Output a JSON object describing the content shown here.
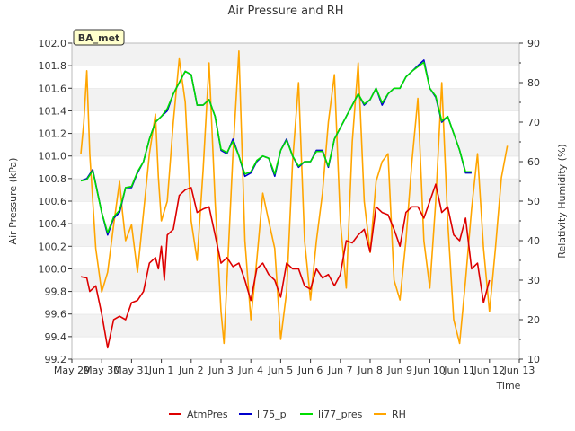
{
  "chart_data": {
    "type": "line",
    "title": "Air Pressure and RH",
    "badge": "BA_met",
    "xlabel": "Time",
    "ylabel": "Air Pressure (kPa)",
    "y2label": "Relativity Humidity (%)",
    "xlim": [
      0,
      15
    ],
    "ylim": [
      99.2,
      102.0
    ],
    "y2lim": [
      10,
      90
    ],
    "x_ticks": [
      {
        "x": 0,
        "label": "May 29"
      },
      {
        "x": 1,
        "label": "May 30"
      },
      {
        "x": 2,
        "label": "May 31"
      },
      {
        "x": 3,
        "label": "Jun 1"
      },
      {
        "x": 4,
        "label": "Jun 2"
      },
      {
        "x": 5,
        "label": "Jun 3"
      },
      {
        "x": 6,
        "label": "Jun 4"
      },
      {
        "x": 7,
        "label": "Jun 5"
      },
      {
        "x": 8,
        "label": "Jun 6"
      },
      {
        "x": 9,
        "label": "Jun 7"
      },
      {
        "x": 10,
        "label": "Jun 8"
      },
      {
        "x": 11,
        "label": "Jun 9"
      },
      {
        "x": 12,
        "label": "Jun 10"
      },
      {
        "x": 13,
        "label": "Jun 11"
      },
      {
        "x": 14,
        "label": "Jun 12"
      },
      {
        "x": 15,
        "label": "Jun 13"
      }
    ],
    "y_ticks": [
      "99.2",
      "99.4",
      "99.6",
      "99.8",
      "100.0",
      "100.2",
      "100.4",
      "100.6",
      "100.8",
      "101.0",
      "101.2",
      "101.4",
      "101.6",
      "101.8",
      "102.0"
    ],
    "y2_ticks": [
      "10",
      "20",
      "30",
      "40",
      "50",
      "60",
      "70",
      "80",
      "90"
    ],
    "grid": true,
    "legend_position": "bottom",
    "series": [
      {
        "name": "AtmPres",
        "axis": "left",
        "color": "#dd0000",
        "points": [
          [
            0.3,
            99.93
          ],
          [
            0.5,
            99.92
          ],
          [
            0.6,
            99.8
          ],
          [
            0.8,
            99.85
          ],
          [
            1.0,
            99.6
          ],
          [
            1.2,
            99.3
          ],
          [
            1.4,
            99.55
          ],
          [
            1.6,
            99.58
          ],
          [
            1.8,
            99.55
          ],
          [
            2.0,
            99.7
          ],
          [
            2.2,
            99.72
          ],
          [
            2.4,
            99.8
          ],
          [
            2.6,
            100.05
          ],
          [
            2.8,
            100.1
          ],
          [
            2.9,
            100.0
          ],
          [
            3.0,
            100.2
          ],
          [
            3.1,
            99.9
          ],
          [
            3.2,
            100.3
          ],
          [
            3.4,
            100.35
          ],
          [
            3.6,
            100.65
          ],
          [
            3.8,
            100.7
          ],
          [
            4.0,
            100.72
          ],
          [
            4.2,
            100.5
          ],
          [
            4.4,
            100.53
          ],
          [
            4.6,
            100.55
          ],
          [
            4.8,
            100.3
          ],
          [
            5.0,
            100.05
          ],
          [
            5.2,
            100.1
          ],
          [
            5.4,
            100.02
          ],
          [
            5.6,
            100.05
          ],
          [
            5.8,
            99.9
          ],
          [
            6.0,
            99.72
          ],
          [
            6.2,
            100.0
          ],
          [
            6.4,
            100.05
          ],
          [
            6.6,
            99.95
          ],
          [
            6.8,
            99.9
          ],
          [
            7.0,
            99.75
          ],
          [
            7.2,
            100.05
          ],
          [
            7.4,
            100.0
          ],
          [
            7.6,
            100.0
          ],
          [
            7.8,
            99.85
          ],
          [
            8.0,
            99.82
          ],
          [
            8.2,
            100.0
          ],
          [
            8.4,
            99.92
          ],
          [
            8.6,
            99.95
          ],
          [
            8.8,
            99.85
          ],
          [
            9.0,
            99.95
          ],
          [
            9.2,
            100.25
          ],
          [
            9.4,
            100.23
          ],
          [
            9.6,
            100.3
          ],
          [
            9.8,
            100.35
          ],
          [
            10.0,
            100.15
          ],
          [
            10.2,
            100.55
          ],
          [
            10.4,
            100.5
          ],
          [
            10.6,
            100.48
          ],
          [
            10.8,
            100.35
          ],
          [
            11.0,
            100.2
          ],
          [
            11.2,
            100.5
          ],
          [
            11.4,
            100.55
          ],
          [
            11.6,
            100.55
          ],
          [
            11.8,
            100.45
          ],
          [
            12.0,
            100.6
          ],
          [
            12.2,
            100.75
          ],
          [
            12.4,
            100.5
          ],
          [
            12.6,
            100.55
          ],
          [
            12.8,
            100.3
          ],
          [
            13.0,
            100.25
          ],
          [
            13.2,
            100.45
          ],
          [
            13.4,
            100.0
          ],
          [
            13.6,
            100.05
          ],
          [
            13.8,
            99.7
          ],
          [
            14.0,
            99.9
          ]
        ]
      },
      {
        "name": "li75_p",
        "axis": "left",
        "color": "#0000cc",
        "points": [
          [
            0.3,
            100.78
          ],
          [
            0.5,
            100.8
          ],
          [
            0.7,
            100.88
          ],
          [
            1.0,
            100.5
          ],
          [
            1.2,
            100.3
          ],
          [
            1.4,
            100.45
          ],
          [
            1.6,
            100.5
          ],
          [
            1.8,
            100.72
          ],
          [
            2.0,
            100.72
          ],
          [
            2.2,
            100.85
          ],
          [
            2.4,
            100.95
          ],
          [
            2.6,
            101.15
          ],
          [
            2.8,
            101.3
          ],
          [
            3.0,
            101.35
          ],
          [
            3.2,
            101.4
          ],
          [
            3.4,
            101.55
          ],
          [
            3.6,
            101.65
          ],
          [
            3.8,
            101.75
          ],
          [
            4.0,
            101.72
          ],
          [
            4.2,
            101.45
          ],
          [
            4.4,
            101.45
          ],
          [
            4.6,
            101.5
          ],
          [
            4.8,
            101.35
          ],
          [
            5.0,
            101.05
          ],
          [
            5.2,
            101.02
          ],
          [
            5.4,
            101.15
          ],
          [
            5.6,
            101.0
          ],
          [
            5.8,
            100.82
          ],
          [
            6.0,
            100.85
          ],
          [
            6.2,
            100.95
          ],
          [
            6.4,
            101.0
          ],
          [
            6.6,
            100.98
          ],
          [
            6.8,
            100.82
          ],
          [
            7.0,
            101.05
          ],
          [
            7.2,
            101.15
          ],
          [
            7.4,
            101.0
          ],
          [
            7.6,
            100.9
          ],
          [
            7.8,
            100.95
          ],
          [
            8.0,
            100.95
          ],
          [
            8.2,
            101.05
          ],
          [
            8.4,
            101.05
          ],
          [
            8.6,
            100.9
          ],
          [
            8.8,
            101.15
          ],
          [
            9.0,
            101.25
          ],
          [
            9.2,
            101.35
          ],
          [
            9.4,
            101.45
          ],
          [
            9.6,
            101.55
          ],
          [
            9.8,
            101.45
          ],
          [
            10.0,
            101.5
          ],
          [
            10.2,
            101.6
          ],
          [
            10.4,
            101.45
          ],
          [
            10.6,
            101.55
          ],
          [
            10.8,
            101.6
          ],
          [
            11.0,
            101.6
          ],
          [
            11.2,
            101.7
          ],
          [
            11.4,
            101.75
          ],
          [
            11.6,
            101.8
          ],
          [
            11.8,
            101.85
          ],
          [
            12.0,
            101.6
          ],
          [
            12.2,
            101.52
          ],
          [
            12.4,
            101.3
          ],
          [
            12.6,
            101.35
          ],
          [
            12.8,
            101.2
          ],
          [
            13.0,
            101.05
          ],
          [
            13.2,
            100.85
          ],
          [
            13.4,
            100.85
          ]
        ]
      },
      {
        "name": "li77_pres",
        "axis": "left",
        "color": "#00dd00",
        "points": [
          [
            0.3,
            100.78
          ],
          [
            0.5,
            100.79
          ],
          [
            0.7,
            100.87
          ],
          [
            1.0,
            100.5
          ],
          [
            1.2,
            100.32
          ],
          [
            1.4,
            100.46
          ],
          [
            1.6,
            100.52
          ],
          [
            1.8,
            100.72
          ],
          [
            2.0,
            100.73
          ],
          [
            2.2,
            100.86
          ],
          [
            2.4,
            100.95
          ],
          [
            2.6,
            101.15
          ],
          [
            2.8,
            101.3
          ],
          [
            3.0,
            101.35
          ],
          [
            3.2,
            101.42
          ],
          [
            3.4,
            101.55
          ],
          [
            3.6,
            101.65
          ],
          [
            3.8,
            101.75
          ],
          [
            4.0,
            101.72
          ],
          [
            4.2,
            101.45
          ],
          [
            4.4,
            101.45
          ],
          [
            4.6,
            101.5
          ],
          [
            4.8,
            101.35
          ],
          [
            5.0,
            101.06
          ],
          [
            5.2,
            101.03
          ],
          [
            5.4,
            101.13
          ],
          [
            5.6,
            101.0
          ],
          [
            5.8,
            100.84
          ],
          [
            6.0,
            100.86
          ],
          [
            6.2,
            100.96
          ],
          [
            6.4,
            101.0
          ],
          [
            6.6,
            100.98
          ],
          [
            6.8,
            100.84
          ],
          [
            7.0,
            101.05
          ],
          [
            7.2,
            101.14
          ],
          [
            7.4,
            101.0
          ],
          [
            7.6,
            100.91
          ],
          [
            7.8,
            100.95
          ],
          [
            8.0,
            100.95
          ],
          [
            8.2,
            101.04
          ],
          [
            8.4,
            101.04
          ],
          [
            8.6,
            100.91
          ],
          [
            8.8,
            101.15
          ],
          [
            9.0,
            101.25
          ],
          [
            9.2,
            101.35
          ],
          [
            9.4,
            101.45
          ],
          [
            9.6,
            101.55
          ],
          [
            9.8,
            101.46
          ],
          [
            10.0,
            101.5
          ],
          [
            10.2,
            101.6
          ],
          [
            10.4,
            101.47
          ],
          [
            10.6,
            101.55
          ],
          [
            10.8,
            101.6
          ],
          [
            11.0,
            101.6
          ],
          [
            11.2,
            101.7
          ],
          [
            11.4,
            101.75
          ],
          [
            11.6,
            101.79
          ],
          [
            11.8,
            101.83
          ],
          [
            12.0,
            101.6
          ],
          [
            12.2,
            101.53
          ],
          [
            12.4,
            101.31
          ],
          [
            12.6,
            101.35
          ],
          [
            12.8,
            101.2
          ],
          [
            13.0,
            101.05
          ],
          [
            13.2,
            100.86
          ],
          [
            13.4,
            100.86
          ]
        ]
      },
      {
        "name": "RH",
        "axis": "right",
        "color": "#ffa500",
        "points": [
          [
            0.3,
            62
          ],
          [
            0.4,
            70
          ],
          [
            0.5,
            83
          ],
          [
            0.6,
            62
          ],
          [
            0.8,
            38
          ],
          [
            1.0,
            27
          ],
          [
            1.2,
            32
          ],
          [
            1.4,
            44
          ],
          [
            1.6,
            55
          ],
          [
            1.7,
            47
          ],
          [
            1.8,
            40
          ],
          [
            2.0,
            44
          ],
          [
            2.2,
            32
          ],
          [
            2.4,
            47
          ],
          [
            2.6,
            62
          ],
          [
            2.8,
            72
          ],
          [
            2.9,
            56
          ],
          [
            3.0,
            45
          ],
          [
            3.2,
            50
          ],
          [
            3.4,
            70
          ],
          [
            3.6,
            86
          ],
          [
            3.8,
            75
          ],
          [
            4.0,
            45
          ],
          [
            4.2,
            35
          ],
          [
            4.4,
            58
          ],
          [
            4.6,
            85
          ],
          [
            4.8,
            50
          ],
          [
            5.0,
            22
          ],
          [
            5.1,
            14
          ],
          [
            5.2,
            30
          ],
          [
            5.4,
            62
          ],
          [
            5.6,
            88
          ],
          [
            5.8,
            40
          ],
          [
            6.0,
            20
          ],
          [
            6.2,
            35
          ],
          [
            6.4,
            52
          ],
          [
            6.6,
            45
          ],
          [
            6.8,
            38
          ],
          [
            7.0,
            15
          ],
          [
            7.2,
            27
          ],
          [
            7.4,
            60
          ],
          [
            7.6,
            80
          ],
          [
            7.8,
            40
          ],
          [
            8.0,
            25
          ],
          [
            8.2,
            40
          ],
          [
            8.4,
            52
          ],
          [
            8.6,
            70
          ],
          [
            8.8,
            82
          ],
          [
            9.0,
            45
          ],
          [
            9.2,
            28
          ],
          [
            9.4,
            65
          ],
          [
            9.6,
            85
          ],
          [
            9.8,
            50
          ],
          [
            10.0,
            37
          ],
          [
            10.2,
            55
          ],
          [
            10.4,
            60
          ],
          [
            10.6,
            62
          ],
          [
            10.8,
            30
          ],
          [
            11.0,
            25
          ],
          [
            11.2,
            40
          ],
          [
            11.4,
            60
          ],
          [
            11.6,
            76
          ],
          [
            11.8,
            40
          ],
          [
            12.0,
            28
          ],
          [
            12.2,
            50
          ],
          [
            12.4,
            80
          ],
          [
            12.6,
            45
          ],
          [
            12.8,
            20
          ],
          [
            13.0,
            14
          ],
          [
            13.2,
            30
          ],
          [
            13.4,
            48
          ],
          [
            13.6,
            62
          ],
          [
            13.8,
            38
          ],
          [
            14.0,
            22
          ],
          [
            14.2,
            38
          ],
          [
            14.4,
            56
          ],
          [
            14.6,
            64
          ]
        ]
      }
    ]
  }
}
